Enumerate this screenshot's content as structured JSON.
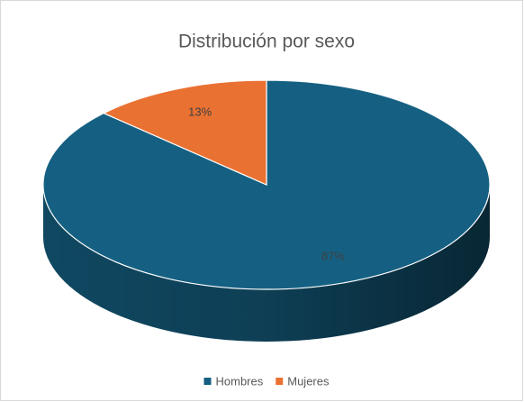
{
  "chart_data": {
    "type": "pie",
    "title": "Distribución por sexo",
    "categories": [
      "Hombres",
      "Mujeres"
    ],
    "values": [
      87,
      13
    ],
    "value_labels": [
      "87%",
      "13%"
    ],
    "colors": [
      "#156082",
      "#e97132"
    ],
    "legend": "bottom"
  }
}
